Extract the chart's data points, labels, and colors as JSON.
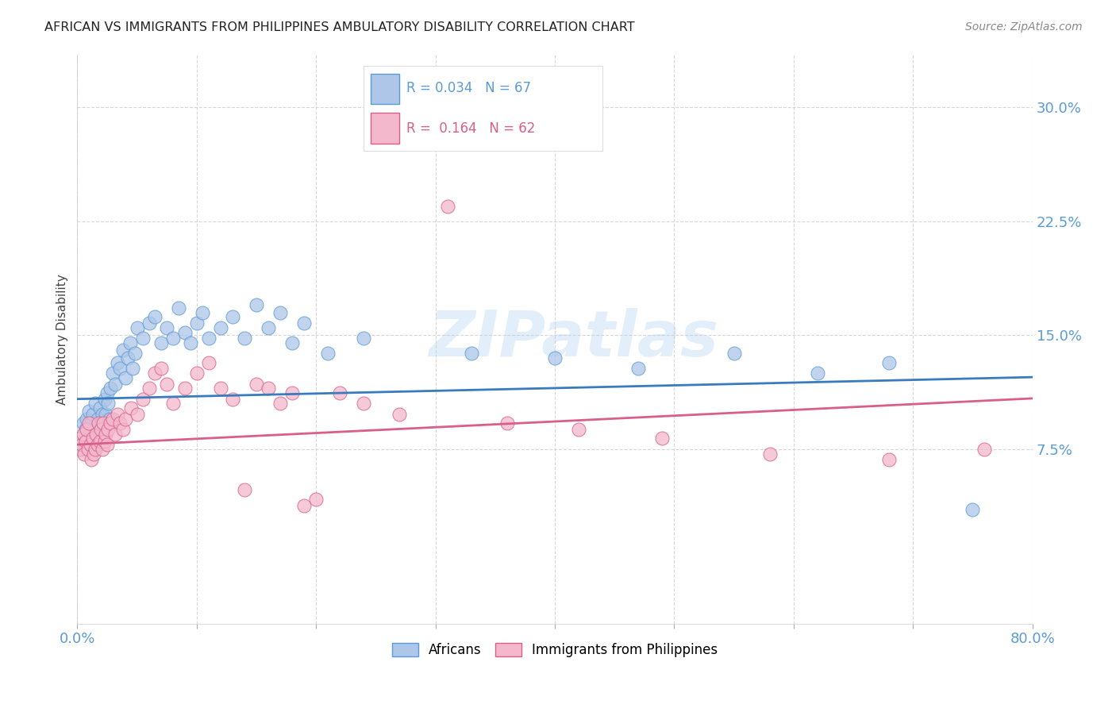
{
  "title": "AFRICAN VS IMMIGRANTS FROM PHILIPPINES AMBULATORY DISABILITY CORRELATION CHART",
  "source": "Source: ZipAtlas.com",
  "ylabel": "Ambulatory Disability",
  "xlim": [
    0.0,
    0.8
  ],
  "ylim": [
    -0.04,
    0.335
  ],
  "yticks": [
    0.075,
    0.15,
    0.225,
    0.3
  ],
  "ytick_labels": [
    "7.5%",
    "15.0%",
    "22.5%",
    "30.0%"
  ],
  "xticks": [
    0.0,
    0.1,
    0.2,
    0.3,
    0.4,
    0.5,
    0.6,
    0.7,
    0.8
  ],
  "xtick_labels": [
    "0.0%",
    "",
    "",
    "",
    "",
    "",
    "",
    "",
    "80.0%"
  ],
  "axis_color": "#5b9bd5",
  "watermark_text": "ZIPatlas",
  "legend_line1": "R = 0.034   N = 67",
  "legend_line2": "R =  0.164   N = 62",
  "label1": "Africans",
  "label2": "Immigrants from Philippines",
  "color1": "#aec6e8",
  "color2": "#f4b8cc",
  "edge_color1": "#5b9bd5",
  "edge_color2": "#d95f8a",
  "line_color1": "#3a7bbf",
  "line_color2": "#d95f8a",
  "africans_x": [
    0.002,
    0.004,
    0.005,
    0.006,
    0.007,
    0.008,
    0.009,
    0.01,
    0.011,
    0.012,
    0.013,
    0.014,
    0.015,
    0.016,
    0.017,
    0.018,
    0.019,
    0.02,
    0.021,
    0.022,
    0.023,
    0.024,
    0.025,
    0.026,
    0.027,
    0.028,
    0.03,
    0.032,
    0.034,
    0.036,
    0.038,
    0.04,
    0.042,
    0.044,
    0.046,
    0.048,
    0.05,
    0.055,
    0.06,
    0.065,
    0.07,
    0.075,
    0.08,
    0.085,
    0.09,
    0.095,
    0.1,
    0.105,
    0.11,
    0.12,
    0.13,
    0.14,
    0.15,
    0.16,
    0.17,
    0.18,
    0.19,
    0.21,
    0.24,
    0.28,
    0.33,
    0.4,
    0.47,
    0.55,
    0.62,
    0.68,
    0.75
  ],
  "africans_y": [
    0.082,
    0.075,
    0.092,
    0.078,
    0.088,
    0.095,
    0.08,
    0.1,
    0.085,
    0.092,
    0.098,
    0.088,
    0.105,
    0.082,
    0.095,
    0.088,
    0.102,
    0.092,
    0.098,
    0.085,
    0.108,
    0.098,
    0.112,
    0.105,
    0.095,
    0.115,
    0.125,
    0.118,
    0.132,
    0.128,
    0.14,
    0.122,
    0.135,
    0.145,
    0.128,
    0.138,
    0.155,
    0.148,
    0.158,
    0.162,
    0.145,
    0.155,
    0.148,
    0.168,
    0.152,
    0.145,
    0.158,
    0.165,
    0.148,
    0.155,
    0.162,
    0.148,
    0.17,
    0.155,
    0.165,
    0.145,
    0.158,
    0.138,
    0.148,
    0.282,
    0.138,
    0.135,
    0.128,
    0.138,
    0.125,
    0.132,
    0.035
  ],
  "philippines_x": [
    0.002,
    0.003,
    0.004,
    0.005,
    0.006,
    0.007,
    0.008,
    0.009,
    0.01,
    0.011,
    0.012,
    0.013,
    0.014,
    0.015,
    0.016,
    0.017,
    0.018,
    0.019,
    0.02,
    0.021,
    0.022,
    0.023,
    0.024,
    0.025,
    0.026,
    0.028,
    0.03,
    0.032,
    0.034,
    0.036,
    0.038,
    0.04,
    0.045,
    0.05,
    0.055,
    0.06,
    0.065,
    0.07,
    0.075,
    0.08,
    0.09,
    0.1,
    0.11,
    0.12,
    0.13,
    0.14,
    0.15,
    0.16,
    0.17,
    0.18,
    0.19,
    0.2,
    0.22,
    0.24,
    0.27,
    0.31,
    0.36,
    0.42,
    0.49,
    0.58,
    0.68,
    0.76
  ],
  "philippines_y": [
    0.075,
    0.082,
    0.078,
    0.085,
    0.072,
    0.08,
    0.088,
    0.075,
    0.092,
    0.078,
    0.068,
    0.082,
    0.072,
    0.075,
    0.085,
    0.078,
    0.092,
    0.08,
    0.088,
    0.075,
    0.092,
    0.08,
    0.085,
    0.078,
    0.088,
    0.092,
    0.095,
    0.085,
    0.098,
    0.092,
    0.088,
    0.095,
    0.102,
    0.098,
    0.108,
    0.115,
    0.125,
    0.128,
    0.118,
    0.105,
    0.115,
    0.125,
    0.132,
    0.115,
    0.108,
    0.048,
    0.118,
    0.115,
    0.105,
    0.112,
    0.038,
    0.042,
    0.112,
    0.105,
    0.098,
    0.235,
    0.092,
    0.088,
    0.082,
    0.072,
    0.068,
    0.075
  ]
}
